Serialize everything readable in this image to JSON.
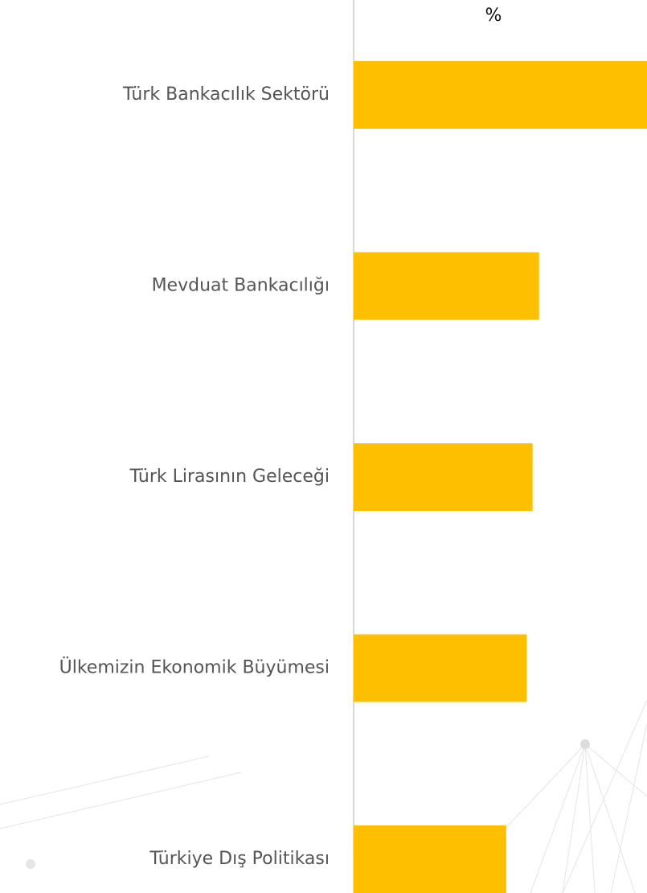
{
  "chart_data": {
    "type": "bar",
    "orientation": "horizontal",
    "unit_label": "%",
    "categories": [
      "Türk Bankacılık Sektörü",
      "Mevduat Bankacılığı",
      "Türk Lirasının Geleceği",
      "Ülkemizin Ekonomik Büyümesi",
      "Türkiye Dış Politikası"
    ],
    "values": [
      50,
      31.6,
      30.5,
      29.5,
      26
    ],
    "color": "#fdbf00",
    "xlim": [
      0,
      50
    ]
  }
}
